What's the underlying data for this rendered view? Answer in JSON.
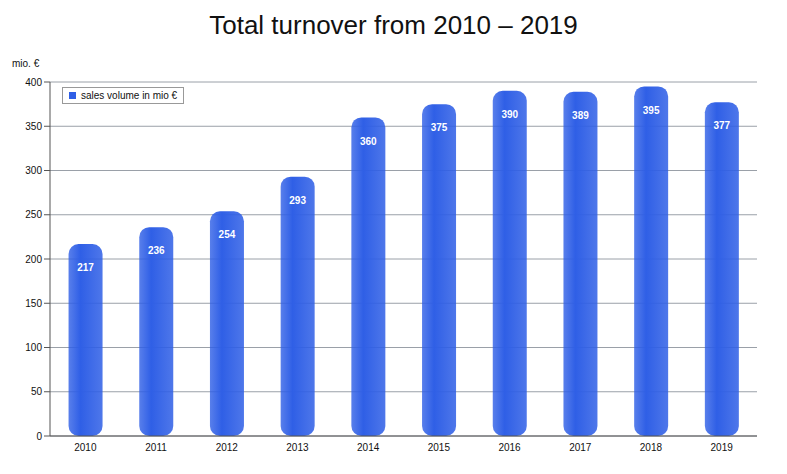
{
  "chart_data": {
    "type": "bar",
    "title": "Total turnover from 2010 – 2019",
    "y_label": "mio. €",
    "categories": [
      "2010",
      "2011",
      "2012",
      "2013",
      "2014",
      "2015",
      "2016",
      "2017",
      "2018",
      "2019"
    ],
    "series": [
      {
        "name": "sales volume in mio €",
        "color": "#2f5fe6",
        "values": [
          217,
          236,
          254,
          293,
          360,
          375,
          390,
          389,
          395,
          377
        ]
      }
    ],
    "ylim": [
      0,
      400
    ],
    "yticks": [
      0,
      50,
      100,
      150,
      200,
      250,
      300,
      350,
      400
    ],
    "grid": true,
    "legend": "upper left",
    "data_labels": true
  }
}
